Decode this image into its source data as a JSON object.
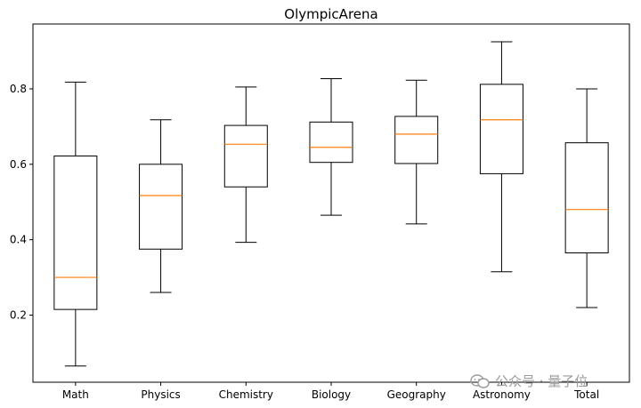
{
  "chart_data": {
    "type": "box",
    "title": "OlympicArena",
    "xlabel": "",
    "ylabel": "",
    "categories": [
      "Math",
      "Physics",
      "Chemistry",
      "Biology",
      "Geography",
      "Astronomy",
      "Total"
    ],
    "boxes": [
      {
        "label": "Math",
        "whisker_low": 0.065,
        "q1": 0.215,
        "median": 0.3,
        "q3": 0.622,
        "whisker_high": 0.818
      },
      {
        "label": "Physics",
        "whisker_low": 0.26,
        "q1": 0.375,
        "median": 0.517,
        "q3": 0.6,
        "whisker_high": 0.718
      },
      {
        "label": "Chemistry",
        "whisker_low": 0.393,
        "q1": 0.54,
        "median": 0.653,
        "q3": 0.703,
        "whisker_high": 0.805
      },
      {
        "label": "Biology",
        "whisker_low": 0.465,
        "q1": 0.605,
        "median": 0.645,
        "q3": 0.712,
        "whisker_high": 0.827
      },
      {
        "label": "Geography",
        "whisker_low": 0.442,
        "q1": 0.602,
        "median": 0.68,
        "q3": 0.727,
        "whisker_high": 0.823
      },
      {
        "label": "Astronomy",
        "whisker_low": 0.315,
        "q1": 0.575,
        "median": 0.718,
        "q3": 0.812,
        "whisker_high": 0.925
      },
      {
        "label": "Total",
        "whisker_low": 0.22,
        "q1": 0.365,
        "median": 0.48,
        "q3": 0.657,
        "whisker_high": 0.8
      }
    ],
    "y_ticks": [
      "0.2",
      "0.4",
      "0.6",
      "0.8"
    ],
    "ylim": [
      0.022,
      0.972
    ],
    "grid": false,
    "colors": {
      "box": "#000000",
      "median": "#ff7f0e"
    }
  },
  "watermark": {
    "text": "公众号 · 量子位"
  }
}
